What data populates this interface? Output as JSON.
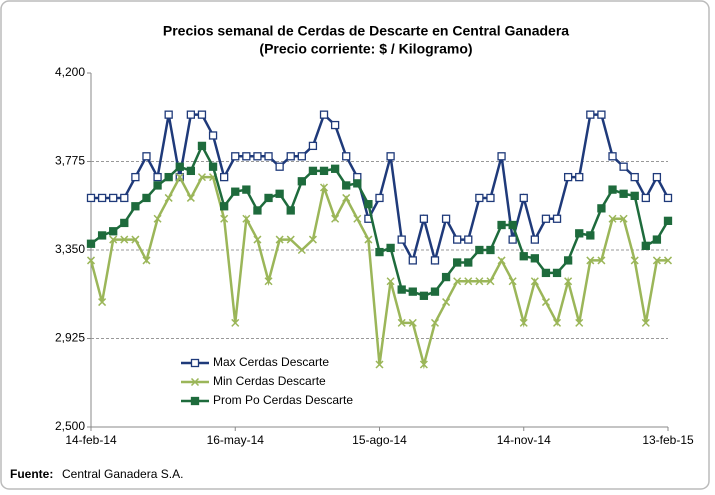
{
  "chart_data": {
    "type": "line",
    "title": "Precios semanal de Cerdas de Descarte en Central Ganadera",
    "subtitle": "(Precio corriente: $ / Kilogramo)",
    "source_label": "Fuente:",
    "source": "Central Ganadera S.A.",
    "categories": [
      "14-feb-14",
      null,
      null,
      null,
      null,
      null,
      null,
      null,
      null,
      null,
      null,
      null,
      null,
      "16-may-14",
      null,
      null,
      null,
      null,
      null,
      null,
      null,
      null,
      null,
      null,
      null,
      null,
      "15-ago-14",
      null,
      null,
      null,
      null,
      null,
      null,
      null,
      null,
      null,
      null,
      null,
      null,
      "14-nov-14",
      null,
      null,
      null,
      null,
      null,
      null,
      null,
      null,
      null,
      null,
      null,
      null,
      "13-feb-15"
    ],
    "ylim": [
      2500,
      4200
    ],
    "yticks": [
      {
        "value": 2500,
        "label": "2,500"
      },
      {
        "value": 2925,
        "label": "2,925"
      },
      {
        "value": 3350,
        "label": "3,350"
      },
      {
        "value": 3775,
        "label": "3,775"
      },
      {
        "value": 4200,
        "label": "4,200"
      }
    ],
    "grid": true,
    "legend": "lower left",
    "series": [
      {
        "name": "Max Cerdas Descarte",
        "color": "#1f3a7a",
        "marker": "square-open",
        "values": [
          3600,
          3600,
          3600,
          3600,
          3700,
          3800,
          3700,
          4000,
          3700,
          4000,
          4000,
          3900,
          3700,
          3800,
          3800,
          3800,
          3800,
          3750,
          3800,
          3800,
          3850,
          4000,
          3950,
          3800,
          3700,
          3500,
          3600,
          3800,
          3400,
          3300,
          3500,
          3300,
          3500,
          3400,
          3400,
          3600,
          3600,
          3800,
          3400,
          3600,
          3400,
          3500,
          3500,
          3700,
          3700,
          4000,
          4000,
          3800,
          3750,
          3700,
          3600,
          3700,
          3600
        ]
      },
      {
        "name": "Min Cerdas Descarte",
        "color": "#9bb659",
        "marker": "x",
        "values": [
          3300,
          3100,
          3400,
          3400,
          3400,
          3300,
          3500,
          3600,
          3700,
          3600,
          3700,
          3700,
          3500,
          3000,
          3500,
          3400,
          3200,
          3400,
          3400,
          3350,
          3400,
          3650,
          3500,
          3600,
          3500,
          3400,
          2800,
          3200,
          3000,
          3000,
          2800,
          3000,
          3100,
          3200,
          3200,
          3200,
          3200,
          3300,
          3200,
          3000,
          3200,
          3100,
          3000,
          3200,
          3000,
          3300,
          3300,
          3500,
          3500,
          3300,
          3000,
          3300,
          3300
        ]
      },
      {
        "name": "Prom Po Cerdas Descarte",
        "color": "#1e6b3c",
        "marker": "square",
        "values": [
          3380,
          3420,
          3440,
          3480,
          3560,
          3600,
          3660,
          3700,
          3750,
          3730,
          3850,
          3750,
          3560,
          3630,
          3640,
          3540,
          3600,
          3620,
          3540,
          3680,
          3730,
          3730,
          3740,
          3660,
          3670,
          3570,
          3340,
          3360,
          3160,
          3150,
          3130,
          3150,
          3220,
          3290,
          3290,
          3350,
          3350,
          3470,
          3470,
          3320,
          3310,
          3240,
          3240,
          3300,
          3430,
          3420,
          3550,
          3640,
          3620,
          3610,
          3370,
          3400,
          3490
        ]
      }
    ]
  }
}
